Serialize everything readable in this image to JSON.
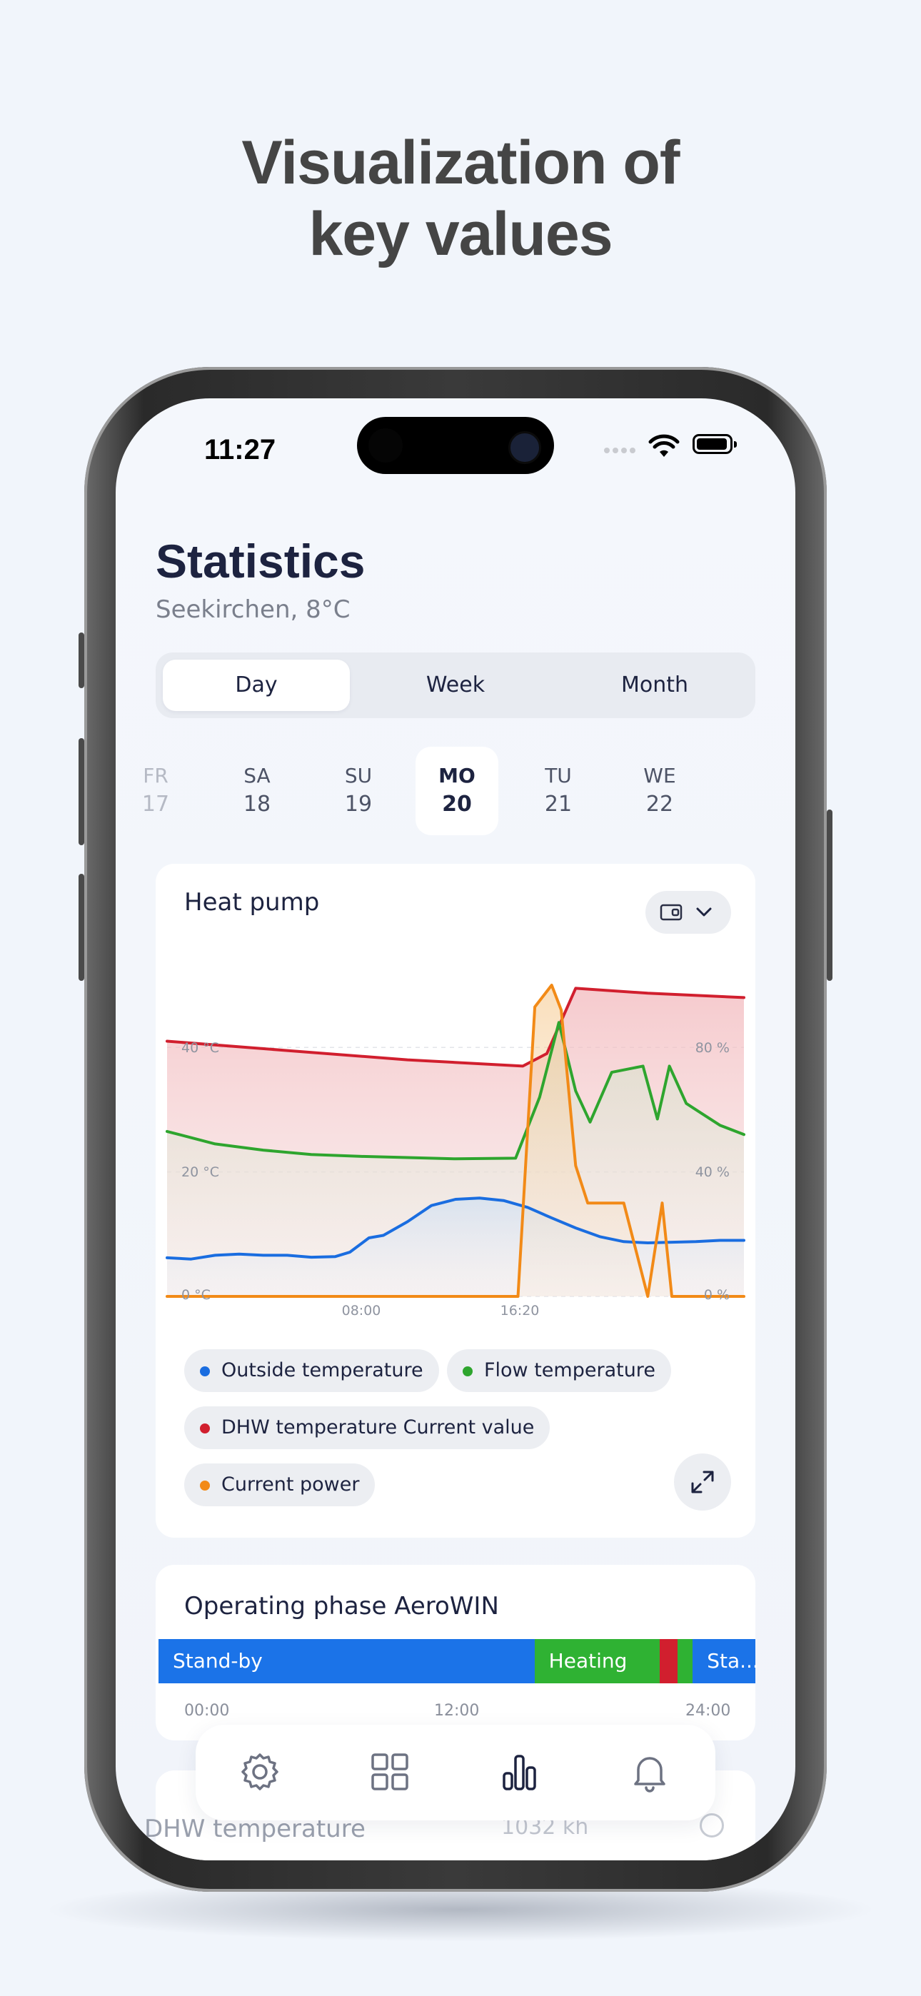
{
  "headline": {
    "line1": "Visualization of",
    "line2": "key values"
  },
  "status": {
    "time": "11:27"
  },
  "page": {
    "title": "Statistics",
    "subtitle": "Seekirchen, 8°C"
  },
  "range_tabs": [
    {
      "label": "Day",
      "active": true
    },
    {
      "label": "Week",
      "active": false
    },
    {
      "label": "Month",
      "active": false
    }
  ],
  "days": [
    {
      "name": "FR",
      "date": "17"
    },
    {
      "name": "SA",
      "date": "18"
    },
    {
      "name": "SU",
      "date": "19"
    },
    {
      "name": "MO",
      "date": "20",
      "active": true
    },
    {
      "name": "TU",
      "date": "21"
    },
    {
      "name": "WE",
      "date": "22"
    }
  ],
  "heat_pump": {
    "title": "Heat pump",
    "legend": [
      {
        "label": "Outside temperature",
        "color": "#1a6de0"
      },
      {
        "label": "Flow temperature",
        "color": "#2ea52e"
      },
      {
        "label": "DHW temperature Current value",
        "color": "#d11f2e"
      },
      {
        "label": "Current power",
        "color": "#f28a17"
      }
    ]
  },
  "chart_data": {
    "type": "line",
    "x_ticks": [
      "08:00",
      "16:20"
    ],
    "x_range_hours": [
      0,
      24
    ],
    "y_left_ticks": [
      "0 °C",
      "20 °C",
      "40 °C"
    ],
    "y_right_ticks": [
      "0 %",
      "40 %",
      "80 %"
    ],
    "y_left_range": [
      0,
      50
    ],
    "y_right_range": [
      0,
      100
    ],
    "series": [
      {
        "name": "DHW temperature Current value",
        "axis": "left",
        "color": "#d11f2e",
        "x": [
          0,
          5,
          10,
          14.8,
          15.8,
          17.0,
          20,
          24
        ],
        "y": [
          41,
          39.5,
          38,
          37,
          39,
          49.5,
          48.7,
          48
        ]
      },
      {
        "name": "Flow temperature",
        "axis": "left",
        "color": "#2ea52e",
        "x": [
          0,
          2,
          4,
          6,
          8,
          10,
          12,
          14.5,
          15.5,
          16.3,
          17.0,
          17.6,
          18.5,
          19.8,
          20.4,
          20.9,
          21.6,
          22.2,
          23,
          24
        ],
        "y": [
          26.5,
          24.5,
          23.5,
          22.8,
          22.5,
          22.3,
          22.1,
          22.2,
          32,
          44,
          33,
          28,
          36,
          37,
          28.5,
          37,
          31,
          29.5,
          27.5,
          26
        ]
      },
      {
        "name": "Outside temperature",
        "axis": "left",
        "color": "#1a6de0",
        "x": [
          0,
          1,
          2,
          3,
          4,
          5,
          6,
          7,
          7.6,
          8.4,
          9,
          10,
          11,
          12,
          13,
          14,
          15,
          16,
          17,
          18,
          19,
          20,
          21,
          22,
          23,
          24
        ],
        "y": [
          6.2,
          6.0,
          6.6,
          6.8,
          6.6,
          6.6,
          6.3,
          6.4,
          7.1,
          9.4,
          9.8,
          12.0,
          14.6,
          15.6,
          15.8,
          15.4,
          14.3,
          12.6,
          11.0,
          9.6,
          8.8,
          8.6,
          8.7,
          8.8,
          9.0,
          9.0
        ]
      },
      {
        "name": "Current power",
        "axis": "right",
        "color": "#f28a17",
        "x": [
          0,
          14.6,
          15.3,
          16.0,
          16.4,
          17.0,
          17.5,
          19.0,
          20.0,
          20.6,
          21.0,
          21.6,
          24
        ],
        "y": [
          0,
          0,
          93,
          100,
          92,
          42,
          30,
          30,
          0,
          30,
          0,
          0,
          0
        ]
      }
    ]
  },
  "operating_phase": {
    "title": "Operating phase AeroWIN",
    "phases": [
      {
        "label": "Stand-by",
        "color": "#1b73e8",
        "start": 0,
        "end": 0.63
      },
      {
        "label": "Heating",
        "color": "#2fb233",
        "start": 0.63,
        "end": 0.84
      },
      {
        "label": "",
        "color": "#d11f2e",
        "start": 0.84,
        "end": 0.87
      },
      {
        "label": "",
        "color": "#2fb233",
        "start": 0.87,
        "end": 0.895
      },
      {
        "label": "Sta...",
        "color": "#1b73e8",
        "start": 0.895,
        "end": 1.0
      }
    ],
    "ticks": [
      "00:00",
      "12:00",
      "24:00"
    ]
  },
  "peek": {
    "title": "DHW temperature",
    "value": "1032 kh"
  },
  "nav": {
    "items": [
      {
        "icon": "gear-icon",
        "active": false
      },
      {
        "icon": "grid-icon",
        "active": false
      },
      {
        "icon": "bar-chart-icon",
        "active": true
      },
      {
        "icon": "bell-icon",
        "active": false
      }
    ]
  }
}
